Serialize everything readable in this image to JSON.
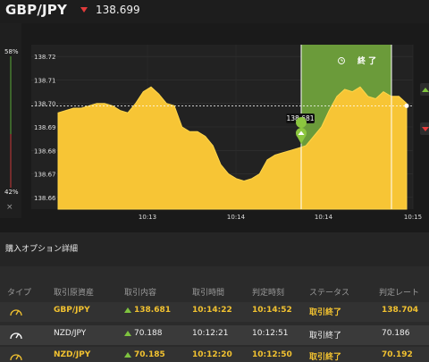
{
  "header": {
    "pair": "GBP/JPY",
    "rate": "138.699"
  },
  "left_bar": {
    "top_pct": "58%",
    "bottom_pct": "42%",
    "close": "×"
  },
  "chart_data": {
    "type": "area",
    "y_ticks": [
      "138.72",
      "138.71",
      "138.70",
      "138.69",
      "138.68",
      "138.67",
      "138.66"
    ],
    "x_ticks": [
      "10:13",
      "10:14",
      "10:14",
      "10:15"
    ],
    "entry_label": "138.681",
    "end_button": "終 了",
    "current_line": "138.699",
    "ylim": [
      138.655,
      138.725
    ],
    "series": [
      {
        "values": [
          138.696,
          138.697,
          138.698,
          138.698,
          138.699,
          138.7,
          138.7,
          138.699,
          138.697,
          138.696,
          138.7,
          138.705,
          138.707,
          138.704,
          138.7,
          138.699,
          138.69,
          138.688,
          138.688,
          138.686,
          138.682,
          138.674,
          138.67,
          138.668,
          138.667,
          138.668,
          138.67,
          138.676,
          138.678,
          138.679,
          138.68,
          138.681,
          138.682,
          138.686,
          138.69,
          138.697,
          138.703,
          138.706,
          138.705,
          138.707,
          138.703,
          138.702,
          138.705,
          138.703,
          138.703,
          138.7
        ]
      }
    ]
  },
  "options": {
    "title": "購入オプション詳細",
    "columns": [
      "タイプ",
      "取引原資産",
      "取引内容",
      "取引時間",
      "判定時刻",
      "ステータス",
      "判定レート"
    ],
    "rows": [
      {
        "asset": "GBP/JPY",
        "content": "138.681",
        "trade_time": "10:14:22",
        "judge_time": "10:14:52",
        "status": "取引終了",
        "rate": "138.704"
      },
      {
        "asset": "NZD/JPY",
        "content": "70.188",
        "trade_time": "10:12:21",
        "judge_time": "10:12:51",
        "status": "取引終了",
        "rate": "70.186"
      },
      {
        "asset": "NZD/JPY",
        "content": "70.185",
        "trade_time": "10:12:20",
        "judge_time": "10:12:50",
        "status": "取引終了",
        "rate": "70.192"
      }
    ]
  },
  "colors": {
    "area": "#f7c535",
    "green_zone": "#6b9b3a",
    "up": "#7ec33f",
    "down": "#e23b3b",
    "gold_text": "#f2c230"
  }
}
